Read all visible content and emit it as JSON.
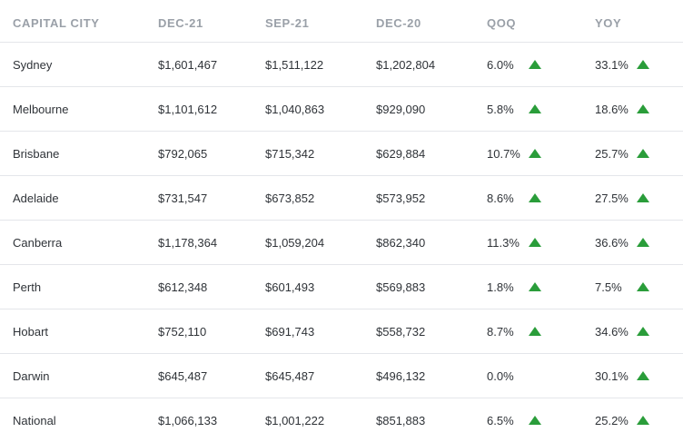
{
  "headers": [
    "CAPITAL CITY",
    "DEC-21",
    "SEP-21",
    "DEC-20",
    "QOQ",
    "YOY"
  ],
  "rows": [
    {
      "city": "Sydney",
      "dec21": "$1,601,467",
      "sep21": "$1,511,122",
      "dec20": "$1,202,804",
      "qoq": "6.0%",
      "qoq_trend": "up",
      "yoy": "33.1%",
      "yoy_trend": "up"
    },
    {
      "city": "Melbourne",
      "dec21": "$1,101,612",
      "sep21": "$1,040,863",
      "dec20": "$929,090",
      "qoq": "5.8%",
      "qoq_trend": "up",
      "yoy": "18.6%",
      "yoy_trend": "up"
    },
    {
      "city": "Brisbane",
      "dec21": "$792,065",
      "sep21": "$715,342",
      "dec20": "$629,884",
      "qoq": "10.7%",
      "qoq_trend": "up",
      "yoy": "25.7%",
      "yoy_trend": "up"
    },
    {
      "city": "Adelaide",
      "dec21": "$731,547",
      "sep21": "$673,852",
      "dec20": "$573,952",
      "qoq": "8.6%",
      "qoq_trend": "up",
      "yoy": "27.5%",
      "yoy_trend": "up"
    },
    {
      "city": "Canberra",
      "dec21": "$1,178,364",
      "sep21": "$1,059,204",
      "dec20": "$862,340",
      "qoq": "11.3%",
      "qoq_trend": "up",
      "yoy": "36.6%",
      "yoy_trend": "up"
    },
    {
      "city": "Perth",
      "dec21": "$612,348",
      "sep21": "$601,493",
      "dec20": "$569,883",
      "qoq": "1.8%",
      "qoq_trend": "up",
      "yoy": "7.5%",
      "yoy_trend": "up"
    },
    {
      "city": "Hobart",
      "dec21": "$752,110",
      "sep21": "$691,743",
      "dec20": "$558,732",
      "qoq": "8.7%",
      "qoq_trend": "up",
      "yoy": "34.6%",
      "yoy_trend": "up"
    },
    {
      "city": "Darwin",
      "dec21": "$645,487",
      "sep21": "$645,487",
      "dec20": "$496,132",
      "qoq": "0.0%",
      "qoq_trend": "none",
      "yoy": "30.1%",
      "yoy_trend": "up"
    },
    {
      "city": "National",
      "dec21": "$1,066,133",
      "sep21": "$1,001,222",
      "dec20": "$851,883",
      "qoq": "6.5%",
      "qoq_trend": "up",
      "yoy": "25.2%",
      "yoy_trend": "up"
    }
  ],
  "colors": {
    "up_arrow": "#2a9d3a",
    "header_text": "#9aa0a8",
    "row_divider": "#e4e6ea"
  },
  "icons": {
    "up": "up-arrow-icon"
  }
}
